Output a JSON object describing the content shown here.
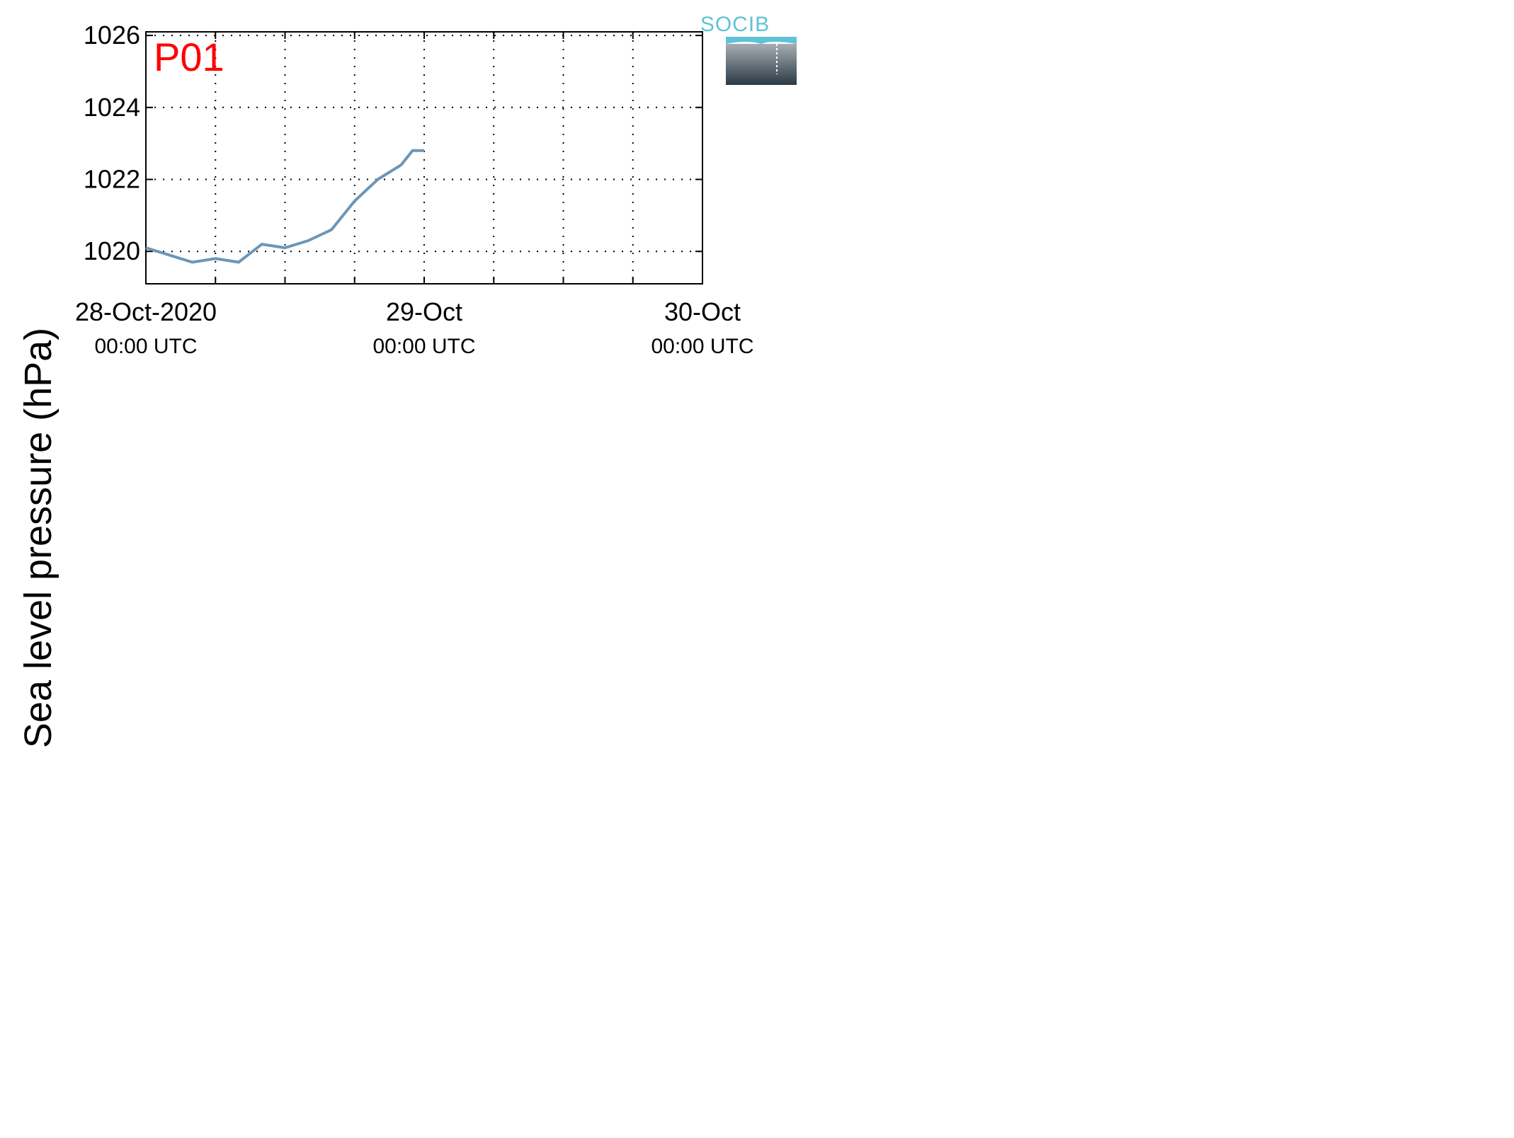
{
  "figure": {
    "ylabel": "Sea level pressure (hPa)",
    "logo_text": "SOCIB"
  },
  "colors": {
    "line": "#6b96b8",
    "panel_label": "#ff0000",
    "axes": "#000000",
    "logo_text": "#5ec3d6"
  },
  "chart_data": [
    {
      "type": "line",
      "name": "P01",
      "xlim": [
        "2020-10-28 00:00",
        "2020-10-30 00:00"
      ],
      "ylim": [
        1019.1,
        1026.1
      ],
      "yticks": [
        1020,
        1022,
        1024,
        1026
      ],
      "xticks": [
        {
          "value": "2020-10-28 00:00",
          "label": "28-Oct-2020",
          "sublabel": "00:00 UTC"
        },
        {
          "value": "2020-10-29 00:00",
          "label": "29-Oct",
          "sublabel": "00:00 UTC"
        },
        {
          "value": "2020-10-30 00:00",
          "label": "30-Oct",
          "sublabel": "00:00 UTC"
        }
      ],
      "grid": true,
      "series": [
        {
          "values": [
            [
              "2020-10-28 00:00",
              1020.1
            ],
            [
              "2020-10-28 02:00",
              1019.9
            ],
            [
              "2020-10-28 04:00",
              1019.7
            ],
            [
              "2020-10-28 06:00",
              1019.8
            ],
            [
              "2020-10-28 08:00",
              1019.7
            ],
            [
              "2020-10-28 10:00",
              1020.2
            ],
            [
              "2020-10-28 12:00",
              1020.1
            ],
            [
              "2020-10-28 14:00",
              1020.3
            ],
            [
              "2020-10-28 16:00",
              1020.6
            ],
            [
              "2020-10-28 18:00",
              1021.4
            ],
            [
              "2020-10-28 20:00",
              1022.0
            ],
            [
              "2020-10-28 22:00",
              1022.4
            ],
            [
              "2020-10-29 00:00",
              1022.8
            ],
            [
              "2020-10-28 23:00",
              1022.8
            ]
          ]
        }
      ]
    }
  ]
}
